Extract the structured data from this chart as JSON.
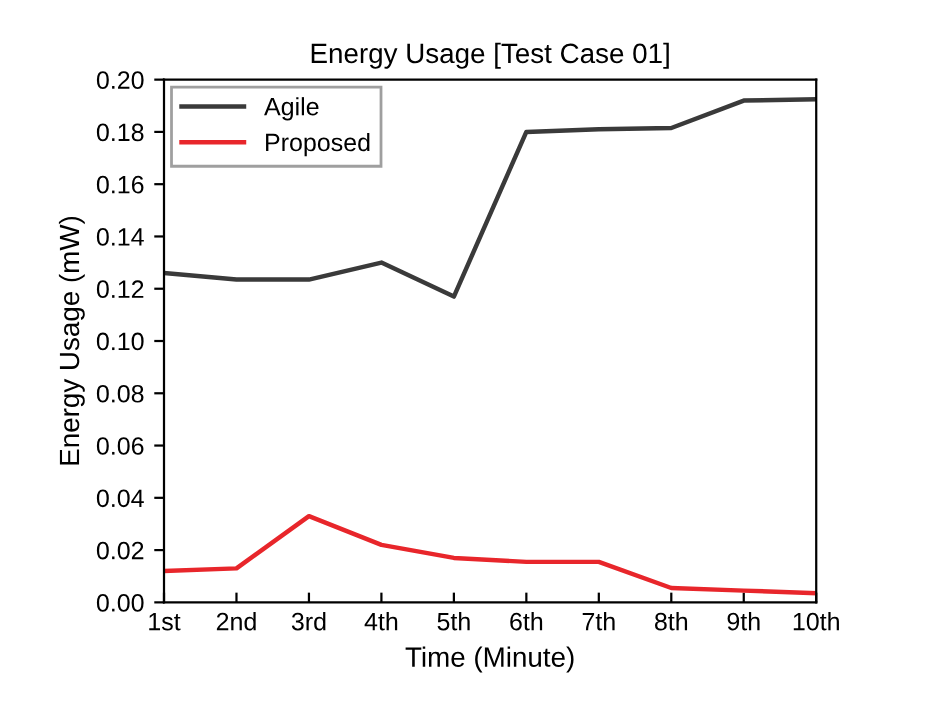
{
  "chart_data": {
    "type": "line",
    "title": "Energy Usage [Test Case 01]",
    "xlabel": "Time (Minute)",
    "ylabel": "Energy Usage (mW)",
    "categories": [
      "1st",
      "2nd",
      "3rd",
      "4th",
      "5th",
      "6th",
      "7th",
      "8th",
      "9th",
      "10th"
    ],
    "series": [
      {
        "name": "Agile",
        "color": "#3a3a3a",
        "values": [
          0.126,
          0.1235,
          0.1235,
          0.13,
          0.117,
          0.18,
          0.181,
          0.1815,
          0.192,
          0.1925
        ]
      },
      {
        "name": "Proposed",
        "color": "#e8262b",
        "values": [
          0.012,
          0.013,
          0.033,
          0.022,
          0.017,
          0.0155,
          0.0155,
          0.0055,
          0.0045,
          0.0035
        ]
      }
    ],
    "ylim": [
      0,
      0.2
    ],
    "yticks": [
      {
        "value": 0,
        "label": "0.00"
      },
      {
        "value": 0.02,
        "label": "0.02"
      },
      {
        "value": 0.04,
        "label": "0.04"
      },
      {
        "value": 0.06,
        "label": "0.06"
      },
      {
        "value": 0.08,
        "label": "0.08"
      },
      {
        "value": 0.1,
        "label": "0.10"
      },
      {
        "value": 0.12,
        "label": "0.12"
      },
      {
        "value": 0.14,
        "label": "0.14"
      },
      {
        "value": 0.16,
        "label": "0.16"
      },
      {
        "value": 0.18,
        "label": "0.18"
      },
      {
        "value": 0.2,
        "label": "0.20"
      }
    ],
    "legend": "top left",
    "grid": false,
    "marker": "none",
    "line_style": "solid"
  }
}
